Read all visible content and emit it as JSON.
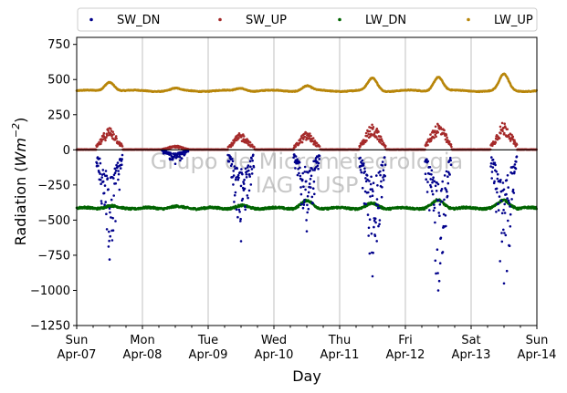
{
  "chart_data": {
    "type": "scatter",
    "title": "",
    "xlabel": "Day",
    "ylabel": "Radiation",
    "ylabel_unit_base": "Wm",
    "ylabel_unit_exp": "−2",
    "xlim": [
      0,
      7
    ],
    "ylim": [
      -1250,
      800
    ],
    "yticks": [
      -1250,
      -1000,
      -750,
      -500,
      -250,
      0,
      250,
      500,
      750
    ],
    "ytick_labels": [
      "−1250",
      "−1000",
      "−750",
      "−500",
      "−250",
      "0",
      "250",
      "500",
      "750"
    ],
    "xticks": [
      {
        "pos": 0,
        "day": "Sun",
        "date": "Apr-07"
      },
      {
        "pos": 1,
        "day": "Mon",
        "date": "Apr-08"
      },
      {
        "pos": 2,
        "day": "Tue",
        "date": "Apr-09"
      },
      {
        "pos": 3,
        "day": "Wed",
        "date": "Apr-10"
      },
      {
        "pos": 4,
        "day": "Thu",
        "date": "Apr-11"
      },
      {
        "pos": 5,
        "day": "Fri",
        "date": "Apr-12"
      },
      {
        "pos": 6,
        "day": "Sat",
        "date": "Apr-13"
      },
      {
        "pos": 7,
        "day": "Sun",
        "date": "Apr-14"
      }
    ],
    "grid": "x-major",
    "zero_line": true,
    "legend_position": "top",
    "watermark": [
      "Grupo de Micrometeorologia",
      "IAG - USP"
    ],
    "series": [
      {
        "name": "SW_DN",
        "color": "#00008b",
        "daily_min": [
          -780,
          -100,
          -650,
          -580,
          -900,
          -1000,
          -950
        ]
      },
      {
        "name": "SW_UP",
        "color": "#a52a2a",
        "daily_peak": [
          190,
          35,
          140,
          150,
          210,
          230,
          230
        ]
      },
      {
        "name": "LW_DN",
        "color": "#006400",
        "night": -415,
        "daily_peak": [
          -400,
          -405,
          -400,
          -365,
          -385,
          -360,
          -360
        ]
      },
      {
        "name": "LW_UP",
        "color": "#b8860b",
        "night": 420,
        "daily_peak": [
          485,
          435,
          440,
          455,
          510,
          520,
          535
        ]
      }
    ]
  }
}
